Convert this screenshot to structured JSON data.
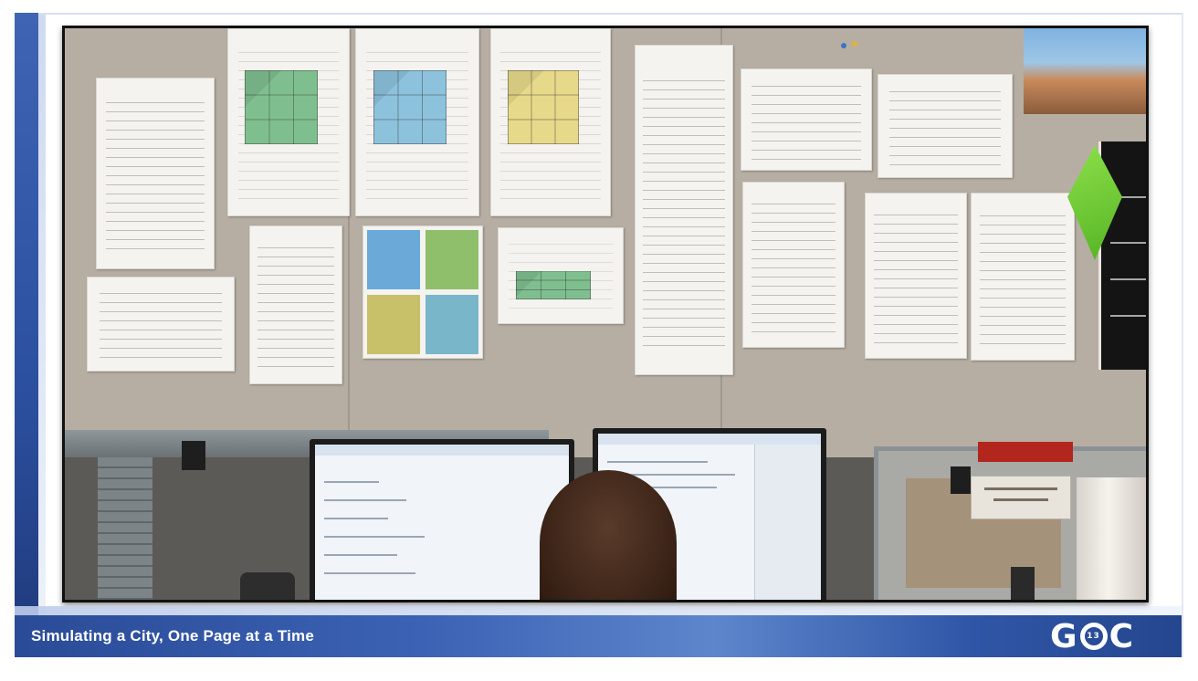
{
  "slide": {
    "footer_title": "Simulating a City, One Page at a Time",
    "logo": {
      "letter_left": "G",
      "ring_number": "13",
      "letter_right": "C"
    }
  },
  "photo": {
    "description_icon": "office-wall-photo"
  },
  "colors": {
    "footer_blue": "#3b62b4",
    "stripe_blue": "#2b4f9e",
    "wall": "#b6aea3"
  }
}
